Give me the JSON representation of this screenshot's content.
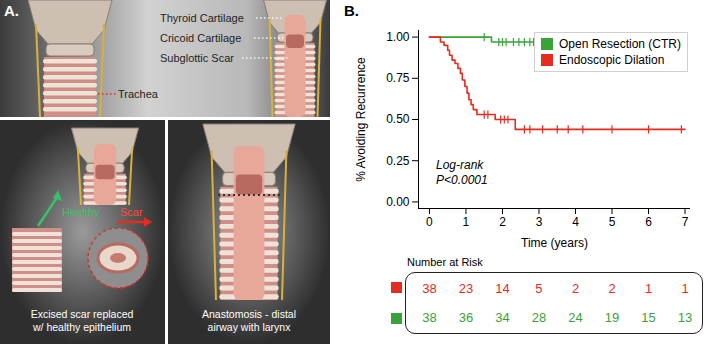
{
  "panel_a": {
    "label": "A.",
    "labels": {
      "thyroid": "Thyroid Cartilage",
      "cricoid": "Cricoid Cartilage",
      "scar": "Subglottic Scar",
      "trachea": "Trachea",
      "healthy": "Healthy",
      "scar_arrow": "Scar"
    },
    "captions": [
      [
        "Excised scar replaced",
        "w/ healthy epithelium"
      ],
      [
        "Anastomosis - distal",
        "airway with larynx"
      ]
    ]
  },
  "chart_data": {
    "type": "step",
    "panel_label": "B.",
    "x_label": "Time (years)",
    "y_label": "% Avoiding Recurrence",
    "xlim": [
      -0.3,
      7.15
    ],
    "ylim": [
      -0.04,
      1.04
    ],
    "xticks": [
      0,
      1,
      2,
      3,
      4,
      5,
      6,
      7
    ],
    "yticks": [
      {
        "value": 0,
        "label": "0.00"
      },
      {
        "value": 0.25,
        "label": "0.25"
      },
      {
        "value": 0.5,
        "label": "0.50"
      },
      {
        "value": 0.75,
        "label": "0.75"
      },
      {
        "value": 1,
        "label": "1.00"
      }
    ],
    "legend": "top-right",
    "annotations": [
      "Log-rank",
      "P<0.0001"
    ],
    "series": [
      {
        "name": "Open Resection (CTR)",
        "color": "#39a339",
        "marker": "tick",
        "x": [
          0,
          1.7,
          7
        ],
        "values": [
          1,
          0.97,
          0.97
        ],
        "censored_x": [
          1.5,
          1.9,
          2.0,
          2.1,
          2.3,
          2.45,
          2.6,
          2.75,
          2.85,
          2.95,
          3.05,
          3.2,
          3.35,
          3.5,
          3.7,
          3.9,
          4.1,
          4.4,
          4.7,
          5.0,
          5.3,
          5.6,
          5.9,
          6.2,
          6.5,
          6.8
        ],
        "censored_y": [
          1,
          0.97,
          0.97,
          0.97,
          0.97,
          0.97,
          0.97,
          0.97,
          0.97,
          0.97,
          0.97,
          0.97,
          0.97,
          0.97,
          0.97,
          0.97,
          0.97,
          0.97,
          0.97,
          0.97,
          0.97,
          0.97,
          0.97,
          0.97,
          0.97,
          0.97
        ]
      },
      {
        "name": "Endoscopic Dilation",
        "color": "#e62b1f",
        "marker": "tick",
        "x": [
          0,
          0.3,
          0.4,
          0.5,
          0.55,
          0.62,
          0.7,
          0.78,
          0.85,
          0.9,
          0.97,
          1.03,
          1.08,
          1.14,
          1.2,
          1.3,
          1.8,
          2.35,
          7
        ],
        "values": [
          1,
          0.97,
          0.95,
          0.92,
          0.89,
          0.86,
          0.84,
          0.81,
          0.78,
          0.74,
          0.7,
          0.66,
          0.62,
          0.59,
          0.56,
          0.53,
          0.5,
          0.44,
          0.44
        ],
        "censored_x": [
          1.5,
          1.6,
          1.95,
          2.05,
          2.15,
          2.6,
          2.75,
          3.1,
          3.5,
          3.8,
          4.2,
          5.0,
          6.0,
          6.9
        ],
        "censored_y": [
          0.53,
          0.53,
          0.5,
          0.5,
          0.5,
          0.44,
          0.44,
          0.44,
          0.44,
          0.44,
          0.44,
          0.44,
          0.44,
          0.44
        ]
      }
    ],
    "number_at_risk": {
      "title": "Number at Risk",
      "x": [
        0,
        1,
        2,
        3,
        4,
        5,
        6,
        7
      ],
      "rows": [
        {
          "color": "#e62b1f",
          "values": [
            38,
            23,
            14,
            5,
            2,
            2,
            1,
            1
          ]
        },
        {
          "color": "#39a339",
          "values": [
            38,
            36,
            34,
            28,
            24,
            19,
            15,
            13
          ]
        }
      ]
    }
  }
}
